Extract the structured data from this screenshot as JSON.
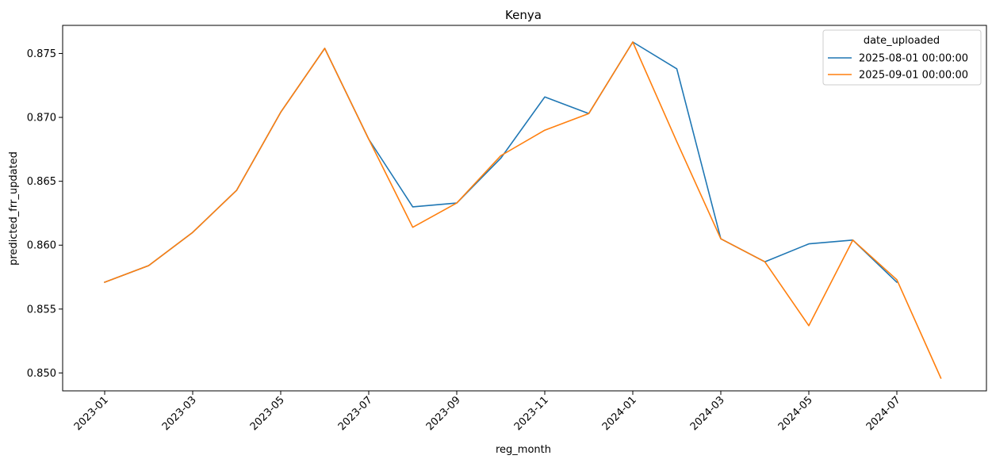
{
  "chart_data": {
    "type": "line",
    "title": "Kenya",
    "xlabel": "reg_month",
    "ylabel": "predicted_frr_updated",
    "ylim": [
      0.8486,
      0.8772
    ],
    "y_ticks": [
      "0.850",
      "0.855",
      "0.860",
      "0.865",
      "0.870",
      "0.875"
    ],
    "x_ticks": [
      "2023-01",
      "2023-03",
      "2023-05",
      "2023-07",
      "2023-09",
      "2023-11",
      "2024-01",
      "2024-03",
      "2024-05",
      "2024-07"
    ],
    "legend": {
      "title": "date_uploaded",
      "placement": "top-right"
    },
    "grid": false,
    "series": [
      {
        "name": "2025-08-01 00:00:00",
        "color": "#1f77b4",
        "x": [
          "2023-01",
          "2023-02",
          "2023-03",
          "2023-04",
          "2023-05",
          "2023-06",
          "2023-07",
          "2023-08",
          "2023-09",
          "2023-10",
          "2023-11",
          "2023-12",
          "2024-01",
          "2024-02",
          "2024-03",
          "2024-04",
          "2024-05",
          "2024-06",
          "2024-07"
        ],
        "values": [
          0.8571,
          0.8584,
          0.861,
          0.8643,
          0.8704,
          0.8754,
          0.8683,
          0.863,
          0.8633,
          0.8668,
          0.8716,
          0.8703,
          0.8759,
          0.8738,
          0.8605,
          0.8587,
          0.8601,
          0.8604,
          0.8571
        ]
      },
      {
        "name": "2025-09-01 00:00:00",
        "color": "#ff7f0e",
        "x": [
          "2023-01",
          "2023-02",
          "2023-03",
          "2023-04",
          "2023-05",
          "2023-06",
          "2023-07",
          "2023-08",
          "2023-09",
          "2023-10",
          "2023-11",
          "2023-12",
          "2024-01",
          "2024-02",
          "2024-03",
          "2024-04",
          "2024-05",
          "2024-06",
          "2024-07",
          "2024-08"
        ],
        "values": [
          0.8571,
          0.8584,
          0.861,
          0.8643,
          0.8704,
          0.8754,
          0.8683,
          0.8614,
          0.8633,
          0.867,
          0.869,
          0.8703,
          0.8759,
          0.8681,
          0.8605,
          0.8587,
          0.8537,
          0.8604,
          0.8573,
          0.8496
        ]
      }
    ]
  }
}
